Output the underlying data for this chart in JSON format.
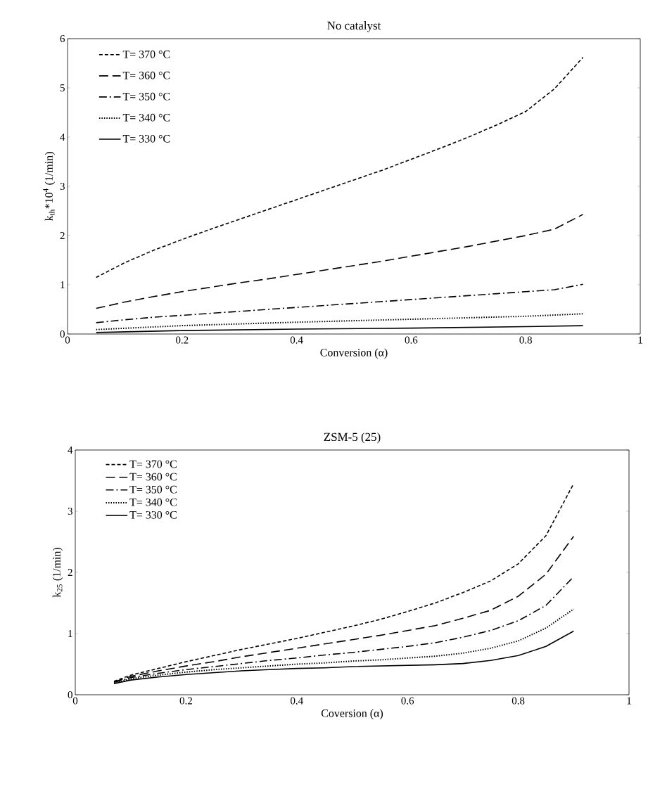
{
  "chart_data": [
    {
      "type": "line",
      "title": "No catalyst",
      "xlabel": "Conversion (α)",
      "ylabel": "k$_{th}$*10$^{4}$ (1/min)",
      "xlim": [
        0,
        1
      ],
      "ylim": [
        0,
        6
      ],
      "xticks": [
        0,
        0.2,
        0.4,
        0.6,
        0.8,
        1
      ],
      "yticks": [
        0,
        1,
        2,
        3,
        4,
        5,
        6
      ],
      "grid": false,
      "legend": "top left",
      "marker": "none",
      "series": [
        {
          "name": "T= 370 °C",
          "color": "#000000",
          "line_style": "dashed",
          "x": [
            0.05,
            0.1,
            0.15,
            0.2,
            0.25,
            0.3,
            0.35,
            0.4,
            0.45,
            0.5,
            0.55,
            0.6,
            0.65,
            0.7,
            0.75,
            0.8,
            0.85,
            0.9
          ],
          "values": [
            1.15,
            1.45,
            1.7,
            1.92,
            2.13,
            2.33,
            2.53,
            2.73,
            2.93,
            3.13,
            3.33,
            3.55,
            3.77,
            4.0,
            4.25,
            4.52,
            4.98,
            5.62
          ]
        },
        {
          "name": "T= 360 °C",
          "color": "#000000",
          "line_style": "long dashed",
          "x": [
            0.05,
            0.1,
            0.15,
            0.2,
            0.25,
            0.3,
            0.35,
            0.4,
            0.45,
            0.5,
            0.55,
            0.6,
            0.65,
            0.7,
            0.75,
            0.8,
            0.85,
            0.9
          ],
          "values": [
            0.52,
            0.65,
            0.76,
            0.86,
            0.95,
            1.04,
            1.12,
            1.21,
            1.3,
            1.39,
            1.48,
            1.58,
            1.68,
            1.78,
            1.89,
            2.0,
            2.13,
            2.43
          ]
        },
        {
          "name": "T= 350 °C",
          "color": "#000000",
          "line_style": "dash-dot",
          "x": [
            0.05,
            0.1,
            0.15,
            0.2,
            0.25,
            0.3,
            0.35,
            0.4,
            0.45,
            0.5,
            0.55,
            0.6,
            0.65,
            0.7,
            0.75,
            0.8,
            0.85,
            0.9
          ],
          "values": [
            0.23,
            0.29,
            0.34,
            0.38,
            0.42,
            0.46,
            0.5,
            0.54,
            0.58,
            0.62,
            0.66,
            0.7,
            0.74,
            0.78,
            0.82,
            0.86,
            0.9,
            1.01
          ]
        },
        {
          "name": "T= 340 °C",
          "color": "#000000",
          "line_style": "dotted",
          "x": [
            0.05,
            0.2,
            0.4,
            0.6,
            0.8,
            0.9
          ],
          "values": [
            0.09,
            0.17,
            0.24,
            0.3,
            0.36,
            0.41
          ]
        },
        {
          "name": "T= 330 °C",
          "color": "#000000",
          "line_style": "solid",
          "x": [
            0.05,
            0.2,
            0.4,
            0.6,
            0.8,
            0.9
          ],
          "values": [
            0.03,
            0.07,
            0.1,
            0.12,
            0.15,
            0.17
          ]
        }
      ]
    },
    {
      "type": "line",
      "title": "ZSM-5 (25)",
      "xlabel": "Coversion (α)",
      "ylabel": "k$_{25}$ (1/min)",
      "xlim": [
        0,
        1
      ],
      "ylim": [
        0,
        4
      ],
      "xticks": [
        0,
        0.2,
        0.4,
        0.6,
        0.8,
        1
      ],
      "yticks": [
        0,
        1,
        2,
        3,
        4
      ],
      "grid": false,
      "legend": "top left",
      "marker": "none",
      "series": [
        {
          "name": "T= 370 °C",
          "color": "#000000",
          "line_style": "dashed",
          "x": [
            0.07,
            0.1,
            0.15,
            0.2,
            0.25,
            0.3,
            0.35,
            0.4,
            0.45,
            0.5,
            0.55,
            0.6,
            0.65,
            0.7,
            0.75,
            0.8,
            0.85,
            0.9
          ],
          "values": [
            0.22,
            0.32,
            0.43,
            0.54,
            0.64,
            0.74,
            0.83,
            0.92,
            1.02,
            1.12,
            1.23,
            1.36,
            1.5,
            1.67,
            1.86,
            2.14,
            2.6,
            3.45
          ]
        },
        {
          "name": "T= 360 °C",
          "color": "#000000",
          "line_style": "long dashed",
          "x": [
            0.07,
            0.1,
            0.15,
            0.2,
            0.25,
            0.3,
            0.35,
            0.4,
            0.45,
            0.5,
            0.55,
            0.6,
            0.65,
            0.7,
            0.75,
            0.8,
            0.85,
            0.9
          ],
          "values": [
            0.21,
            0.3,
            0.39,
            0.47,
            0.54,
            0.62,
            0.69,
            0.76,
            0.83,
            0.9,
            0.97,
            1.05,
            1.13,
            1.25,
            1.38,
            1.61,
            1.97,
            2.59
          ]
        },
        {
          "name": "T= 350 °C",
          "color": "#000000",
          "line_style": "dash-dot",
          "x": [
            0.07,
            0.1,
            0.15,
            0.2,
            0.25,
            0.3,
            0.35,
            0.4,
            0.45,
            0.5,
            0.55,
            0.6,
            0.65,
            0.7,
            0.75,
            0.8,
            0.85,
            0.9
          ],
          "values": [
            0.2,
            0.28,
            0.35,
            0.41,
            0.46,
            0.51,
            0.56,
            0.6,
            0.65,
            0.69,
            0.74,
            0.79,
            0.85,
            0.94,
            1.05,
            1.21,
            1.46,
            1.93
          ]
        },
        {
          "name": "T= 340 °C",
          "color": "#000000",
          "line_style": "dotted",
          "x": [
            0.07,
            0.1,
            0.15,
            0.2,
            0.25,
            0.3,
            0.35,
            0.4,
            0.45,
            0.5,
            0.55,
            0.6,
            0.65,
            0.7,
            0.75,
            0.8,
            0.85,
            0.9
          ],
          "values": [
            0.19,
            0.26,
            0.32,
            0.37,
            0.41,
            0.44,
            0.47,
            0.5,
            0.52,
            0.55,
            0.57,
            0.6,
            0.63,
            0.68,
            0.76,
            0.88,
            1.09,
            1.4
          ]
        },
        {
          "name": "T= 330 °C",
          "color": "#000000",
          "line_style": "solid",
          "x": [
            0.07,
            0.1,
            0.15,
            0.2,
            0.25,
            0.3,
            0.35,
            0.4,
            0.45,
            0.5,
            0.55,
            0.6,
            0.65,
            0.7,
            0.75,
            0.8,
            0.85,
            0.9
          ],
          "values": [
            0.18,
            0.24,
            0.29,
            0.33,
            0.36,
            0.39,
            0.41,
            0.43,
            0.44,
            0.46,
            0.47,
            0.48,
            0.49,
            0.51,
            0.56,
            0.64,
            0.79,
            1.04
          ]
        }
      ]
    }
  ]
}
